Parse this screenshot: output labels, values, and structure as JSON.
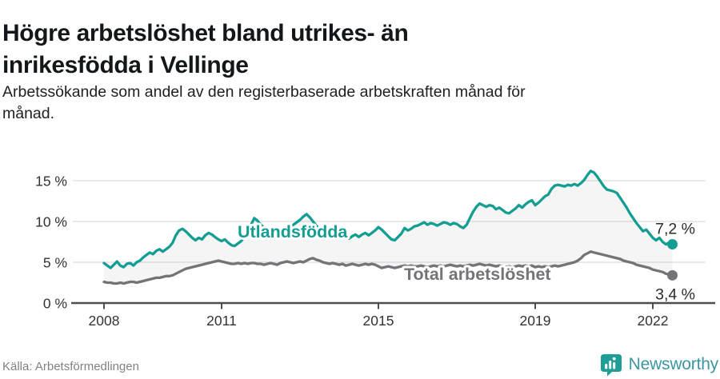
{
  "header": {
    "title_line1": "Högre arbetslöshet bland utrikes- än",
    "title_line2": "inrikesfödda i Vellinge",
    "subtitle_line1": "Arbetssökande som andel av den registerbaserade arbetskraften månad för",
    "subtitle_line2": "månad."
  },
  "footer": {
    "source": "Källa: Arbetsförmedlingen",
    "brand": "Newsworthy",
    "brand_icon": "bar-chart-badge-icon"
  },
  "colors": {
    "accent_teal": "#149E93",
    "series_gray": "#747478",
    "brand_text": "#3C96A2",
    "brand_icon": "#1E9E96",
    "grid": "#E4E4E4",
    "axis": "#4D4D4D",
    "tick_text": "#333333",
    "annotation_text": "#2B2B2B",
    "band_fill": "rgba(125,125,125,0.08)"
  },
  "chart_data": {
    "type": "line",
    "x_unit": "month",
    "x_start_year": 2008,
    "x_end_year": 2022.5,
    "x_ticks": [
      2008,
      2011,
      2015,
      2019,
      2022
    ],
    "y_ticks": [
      {
        "value": 0,
        "label": "0 %"
      },
      {
        "value": 5,
        "label": "5 %"
      },
      {
        "value": 10,
        "label": "10 %"
      },
      {
        "value": 15,
        "label": "15 %"
      }
    ],
    "ylim": [
      0,
      17
    ],
    "grid": true,
    "legend_position": "inline-labels",
    "series": [
      {
        "name": "Utlandsfödda",
        "color": "#149E93",
        "end_label": "7,2 %",
        "values": [
          4.9,
          4.6,
          4.3,
          4.7,
          5.1,
          4.6,
          4.4,
          4.8,
          4.9,
          4.6,
          5.0,
          5.2,
          5.6,
          5.9,
          6.2,
          6.0,
          6.4,
          6.6,
          6.3,
          6.6,
          6.9,
          7.4,
          8.3,
          8.9,
          9.1,
          8.8,
          8.4,
          8.0,
          7.7,
          8.0,
          7.8,
          8.3,
          8.6,
          8.4,
          8.1,
          7.8,
          7.6,
          7.8,
          7.4,
          7.1,
          7.0,
          7.3,
          7.6,
          8.1,
          8.8,
          9.6,
          10.4,
          10.1,
          9.6,
          9.2,
          8.9,
          9.1,
          8.8,
          8.6,
          8.9,
          9.2,
          9.0,
          9.3,
          9.6,
          9.9,
          10.2,
          10.6,
          10.9,
          10.5,
          10.0,
          9.5,
          9.0,
          8.6,
          8.3,
          8.1,
          8.3,
          8.0,
          8.2,
          8.4,
          8.1,
          7.9,
          8.2,
          8.4,
          8.1,
          8.4,
          8.6,
          8.3,
          8.6,
          8.9,
          9.3,
          9.0,
          8.6,
          8.2,
          7.8,
          7.7,
          8.1,
          8.5,
          9.2,
          8.9,
          9.1,
          9.4,
          9.5,
          9.7,
          9.9,
          9.6,
          9.8,
          9.7,
          9.5,
          9.7,
          9.9,
          9.8,
          9.6,
          9.8,
          9.7,
          9.4,
          9.2,
          9.6,
          10.4,
          11.2,
          11.8,
          12.2,
          12.0,
          11.8,
          12.0,
          11.9,
          11.5,
          11.7,
          11.4,
          11.1,
          11.0,
          11.3,
          11.6,
          12.0,
          11.7,
          12.1,
          12.4,
          12.6,
          12.0,
          12.3,
          12.7,
          13.1,
          13.3,
          14.0,
          14.4,
          14.5,
          14.4,
          14.3,
          14.5,
          14.4,
          14.6,
          14.4,
          14.7,
          15.1,
          15.7,
          16.2,
          16.0,
          15.5,
          14.9,
          14.3,
          13.9,
          13.8,
          13.7,
          13.5,
          12.9,
          12.3,
          11.7,
          11.0,
          10.4,
          9.8,
          9.3,
          8.8,
          9.0,
          8.5,
          8.0,
          7.7,
          8.0,
          7.5,
          7.2,
          7.4,
          7.2
        ]
      },
      {
        "name": "Total arbetslöshet",
        "color": "#747478",
        "end_label": "3,4 %",
        "values": [
          2.6,
          2.5,
          2.5,
          2.4,
          2.4,
          2.5,
          2.4,
          2.5,
          2.6,
          2.6,
          2.5,
          2.6,
          2.7,
          2.8,
          2.9,
          3.0,
          3.1,
          3.1,
          3.2,
          3.3,
          3.3,
          3.4,
          3.6,
          3.8,
          4.0,
          4.2,
          4.3,
          4.4,
          4.5,
          4.6,
          4.7,
          4.8,
          4.9,
          5.0,
          5.1,
          5.2,
          5.1,
          5.0,
          4.9,
          4.8,
          4.8,
          4.9,
          4.8,
          4.9,
          4.8,
          4.9,
          4.9,
          4.8,
          4.8,
          4.7,
          4.8,
          4.9,
          4.8,
          4.7,
          4.9,
          5.0,
          5.1,
          5.0,
          4.9,
          5.0,
          5.1,
          5.0,
          5.2,
          5.4,
          5.5,
          5.3,
          5.2,
          5.0,
          4.9,
          4.8,
          4.9,
          4.8,
          4.7,
          4.8,
          4.6,
          4.7,
          4.8,
          4.7,
          4.6,
          4.7,
          4.8,
          4.7,
          4.8,
          4.7,
          4.5,
          4.3,
          4.4,
          4.5,
          4.4,
          4.3,
          4.4,
          4.5,
          4.6,
          4.5,
          4.6,
          4.5,
          4.5,
          4.6,
          4.5,
          4.4,
          4.5,
          4.6,
          4.5,
          4.6,
          4.5,
          4.6,
          4.7,
          4.6,
          4.5,
          4.6,
          4.5,
          4.6,
          4.7,
          4.6,
          4.7,
          4.8,
          4.7,
          4.6,
          4.7,
          4.6,
          4.5,
          4.6,
          4.5,
          4.4,
          4.5,
          4.4,
          4.5,
          4.6,
          4.5,
          4.6,
          4.5,
          4.6,
          4.4,
          4.5,
          4.4,
          4.5,
          4.4,
          4.5,
          4.6,
          4.5,
          4.6,
          4.7,
          4.8,
          4.9,
          5.0,
          5.2,
          5.5,
          5.9,
          6.1,
          6.3,
          6.2,
          6.1,
          6.0,
          5.9,
          5.8,
          5.7,
          5.6,
          5.5,
          5.4,
          5.2,
          5.1,
          5.0,
          4.9,
          4.7,
          4.6,
          4.5,
          4.4,
          4.3,
          4.1,
          4.0,
          3.9,
          3.8,
          3.6,
          3.5,
          3.4
        ]
      }
    ]
  }
}
